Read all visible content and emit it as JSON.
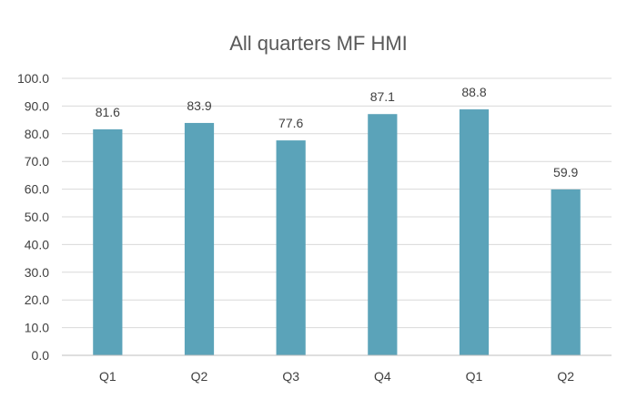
{
  "chart_data": {
    "type": "bar",
    "title": "All quarters MF HMI",
    "xlabel": "",
    "ylabel": "",
    "categories": [
      "Q1",
      "Q2",
      "Q3",
      "Q4",
      "Q1",
      "Q2"
    ],
    "values": [
      81.6,
      83.9,
      77.6,
      87.1,
      88.8,
      59.9
    ],
    "value_labels": [
      "81.6",
      "83.9",
      "77.6",
      "87.1",
      "88.8",
      "59.9"
    ],
    "ylim": [
      0,
      100
    ],
    "yticks": [
      0,
      10,
      20,
      30,
      40,
      50,
      60,
      70,
      80,
      90,
      100
    ],
    "ytick_labels": [
      "0.0",
      "10.0",
      "20.0",
      "30.0",
      "40.0",
      "50.0",
      "60.0",
      "70.0",
      "80.0",
      "90.0",
      "100.0"
    ],
    "grid": true,
    "legend": "none",
    "bar_color": "#5ba3b9",
    "gridline_color": "#d9d9d9",
    "axis_color": "#bfbfbf",
    "text_color": "#404040",
    "title_color": "#595959"
  }
}
